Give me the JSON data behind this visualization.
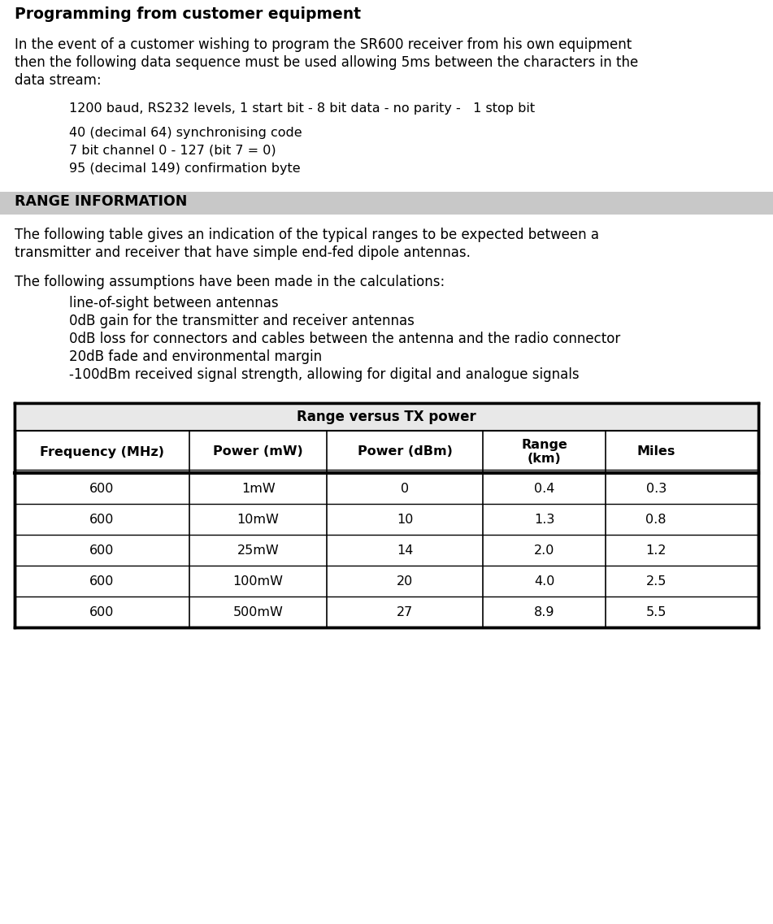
{
  "title": "Programming from customer equipment",
  "para1_lines": [
    "In the event of a customer wishing to program the SR600 receiver from his own equipment",
    "then the following data sequence must be used allowing 5ms between the characters in the",
    "data stream:"
  ],
  "indent_line1": "1200 baud, RS232 levels, 1 start bit - 8 bit data - no parity -   1 stop bit",
  "indent_lines": [
    "40 (decimal 64) synchronising code",
    "7 bit channel 0 - 127 (bit 7 = 0)",
    "95 (decimal 149) confirmation byte"
  ],
  "section_header": "RANGE INFORMATION",
  "section_header_bg": "#c8c8c8",
  "para2_lines": [
    "The following table gives an indication of the typical ranges to be expected between a",
    "transmitter and receiver that have simple end-fed dipole antennas."
  ],
  "para3": "The following assumptions have been made in the calculations:",
  "bullet_lines": [
    "line-of-sight between antennas",
    "0dB gain for the transmitter and receiver antennas",
    "0dB loss for connectors and cables between the antenna and the radio connector",
    "20dB fade and environmental margin",
    "-100dBm received signal strength, allowing for digital and analogue signals"
  ],
  "table_title": "Range versus TX power",
  "table_headers": [
    "Frequency (MHz)",
    "Power (mW)",
    "Power (dBm)",
    "Range\n(km)",
    "Miles"
  ],
  "table_data": [
    [
      "600",
      "1mW",
      "0",
      "0.4",
      "0.3"
    ],
    [
      "600",
      "10mW",
      "10",
      "1.3",
      "0.8"
    ],
    [
      "600",
      "25mW",
      "14",
      "2.0",
      "1.2"
    ],
    [
      "600",
      "100mW",
      "20",
      "4.0",
      "2.5"
    ],
    [
      "600",
      "500mW",
      "27",
      "8.9",
      "5.5"
    ]
  ],
  "bg_color": "#ffffff",
  "text_color": "#000000",
  "font_size_title": 13.5,
  "font_size_body": 12.0,
  "font_size_indent": 11.5,
  "font_size_section": 12.5,
  "font_size_table_title": 12.0,
  "font_size_table_header": 11.5,
  "font_size_table_data": 11.5
}
